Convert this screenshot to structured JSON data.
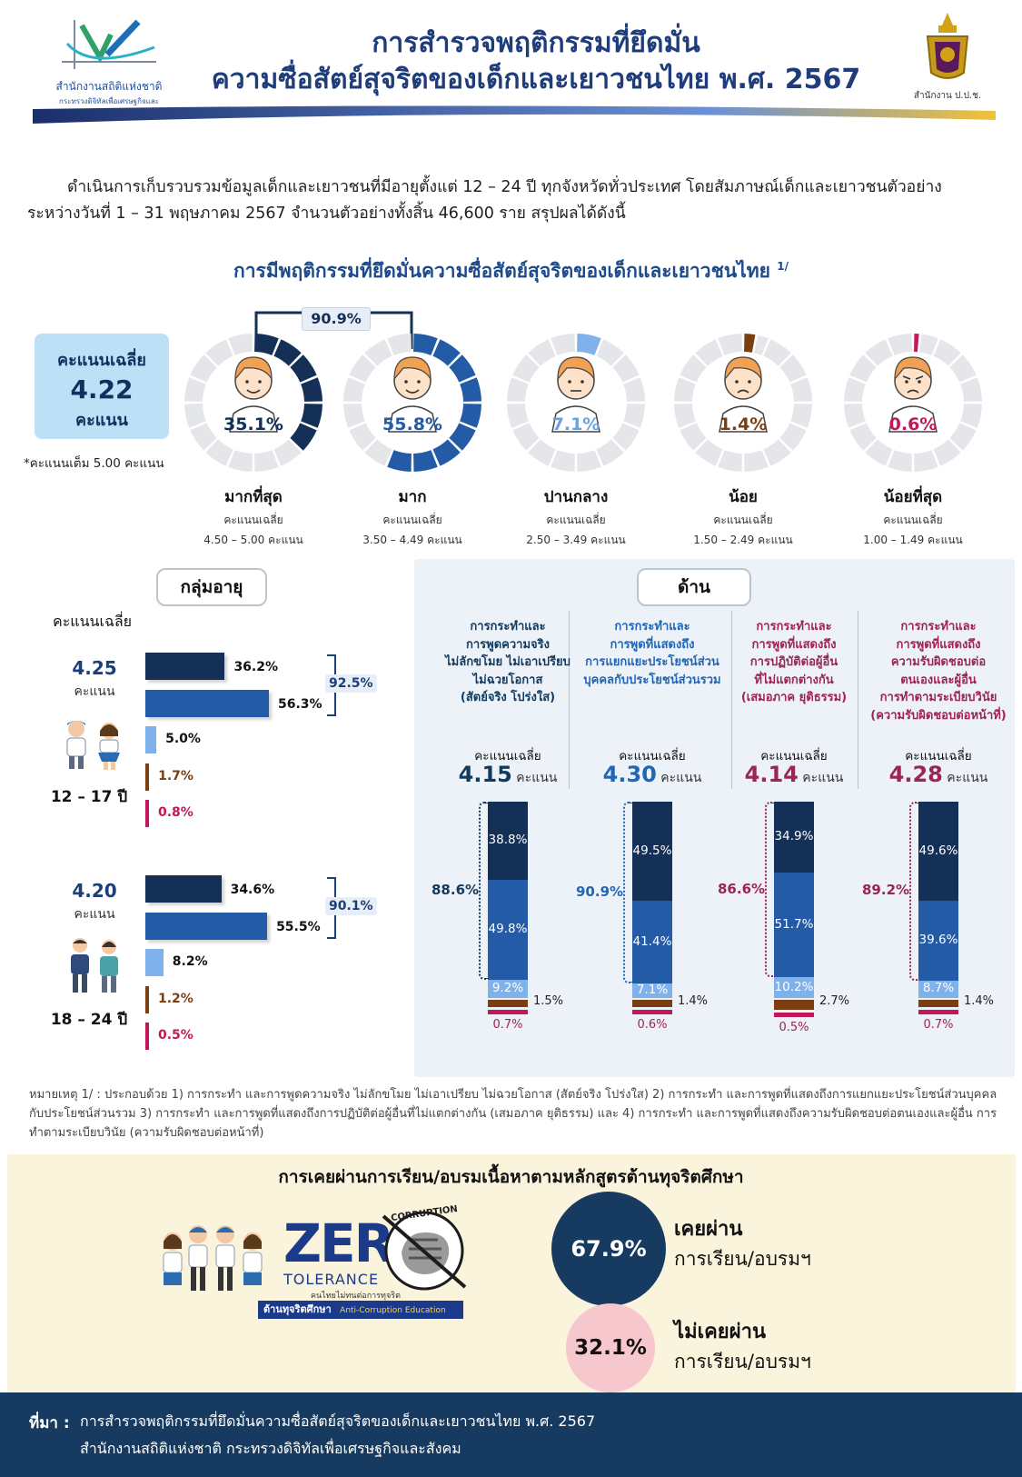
{
  "header": {
    "title_line1": "การสำรวจพฤติกรรมที่ยึดมั่น",
    "title_line2": "ความซื่อสัตย์สุจริตของเด็กและเยาวชนไทย พ.ศ. 2567",
    "left_logo_name": "สำนักงานสถิติแห่งชาติ",
    "left_logo_sub": "กระทรวงดิจิทัลเพื่อเศรษฐกิจและสังคม",
    "right_logo_name": "สำนักงาน ป.ป.ช."
  },
  "intro": "ดำเนินการเก็บรวบรวมข้อมูลเด็กและเยาวชนที่มีอายุตั้งแต่ 12 – 24 ปี ทุกจังหวัดทั่วประเทศ โดยสัมภาษณ์เด็กและเยาวชนตัวอย่าง ระหว่างวันที่ 1 – 31 พฤษภาคม 2567 จำนวนตัวอย่างทั้งสิ้น 46,600 ราย สรุปผลได้ดังนี้",
  "section1": {
    "title": "การมีพฤติกรรมที่ยึดมั่นความซื่อสัตย์สุจริตของเด็กและเยาวชนไทย",
    "title_sup": "1/",
    "avg_label": "คะแนนเฉลี่ย",
    "avg_value": "4.22",
    "avg_unit": "คะแนน",
    "avg_note": "*คะแนนเต็ม 5.00 คะแนน",
    "top_two_sum": "90.9%"
  },
  "chart_data": [
    {
      "type": "pie",
      "title": "",
      "categories": [
        "มากที่สุด",
        "มาก",
        "ปานกลาง",
        "น้อย",
        "น้อยที่สุด"
      ],
      "values": [
        35.1,
        55.8,
        7.1,
        1.4,
        0.6
      ],
      "value_labels": [
        "35.1%",
        "55.8%",
        "7.1%",
        "1.4%",
        "0.6%"
      ],
      "score_ranges": [
        "4.50 – 5.00 คะแนน",
        "3.50 – 4.49 คะแนน",
        "2.50 – 3.49 คะแนน",
        "1.50 – 2.49 คะแนน",
        "1.00 – 1.49 คะแนน"
      ],
      "range_label": "คะแนนเฉลี่ย",
      "colors": [
        "#143057",
        "#245ba6",
        "#7fb2ea",
        "#7a3e12",
        "#c2185b"
      ],
      "track_color": "#e4e6ea"
    },
    {
      "type": "bar",
      "title": "กลุ่มอายุ",
      "ylabel": "คะแนนเฉลี่ย",
      "orientation": "horizontal",
      "groups": [
        {
          "name": "12 – 17 ปี",
          "score": "4.25",
          "unit": "คะแนน",
          "values": [
            36.2,
            56.3,
            5.0,
            1.7,
            0.8
          ],
          "labels": [
            "36.2%",
            "56.3%",
            "5.0%",
            "1.7%",
            "0.8%"
          ],
          "top_two_sum": "92.5%"
        },
        {
          "name": "18 – 24 ปี",
          "score": "4.20",
          "unit": "คะแนน",
          "values": [
            34.6,
            55.5,
            8.2,
            1.2,
            0.5
          ],
          "labels": [
            "34.6%",
            "55.5%",
            "8.2%",
            "1.2%",
            "0.5%"
          ],
          "top_two_sum": "90.1%"
        }
      ],
      "xlim": [
        0,
        100
      ]
    },
    {
      "type": "bar",
      "title": "ด้าน",
      "stacked": true,
      "avg_label": "คะแนนเฉลี่ย",
      "unit": "คะแนน",
      "aspects": [
        {
          "name_lines": [
            "การกระทำและ",
            "การพูดความจริง",
            "ไม่ลักขโมย ไม่เอาเปรียบ",
            "ไม่ฉวยโอกาส",
            "(สัตย์จริง โปร่งใส)"
          ],
          "score": "4.15",
          "values": [
            38.8,
            49.8,
            9.2,
            1.5,
            0.7
          ],
          "labels": [
            "38.8%",
            "49.8%",
            "9.2%",
            "1.5%",
            "0.7%"
          ],
          "top_two_sum": "88.6%",
          "accent": "#123a5e"
        },
        {
          "name_lines": [
            "การกระทำและ",
            "การพูดที่แสดงถึง",
            "การแยกแยะประโยชน์ส่วน",
            "บุคคลกับประโยชน์ส่วนรวม"
          ],
          "score": "4.30",
          "values": [
            49.5,
            41.4,
            7.1,
            1.4,
            0.6
          ],
          "labels": [
            "49.5%",
            "41.4%",
            "7.1%",
            "1.4%",
            "0.6%"
          ],
          "top_two_sum": "90.9%",
          "accent": "#2166b5"
        },
        {
          "name_lines": [
            "การกระทำและ",
            "การพูดที่แสดงถึง",
            "การปฏิบัติต่อผู้อื่น",
            "ที่ไม่แตกต่างกัน",
            "(เสมอภาค ยุติธรรม)"
          ],
          "score": "4.14",
          "values": [
            34.9,
            51.7,
            10.2,
            2.7,
            0.5
          ],
          "labels": [
            "34.9%",
            "51.7%",
            "10.2%",
            "2.7%",
            "0.5%"
          ],
          "top_two_sum": "86.6%",
          "accent": "#9c2456"
        },
        {
          "name_lines": [
            "การกระทำและ",
            "การพูดที่แสดงถึง",
            "ความรับผิดชอบต่อ",
            "ตนเองและผู้อื่น",
            "การทำตามระเบียบวินัย",
            "(ความรับผิดชอบต่อหน้าที่)"
          ],
          "score": "4.28",
          "values": [
            49.6,
            39.6,
            8.7,
            1.4,
            0.7
          ],
          "labels": [
            "49.6%",
            "39.6%",
            "8.7%",
            "1.4%",
            "0.7%"
          ],
          "top_two_sum": "89.2%",
          "accent": "#9c2456"
        }
      ],
      "ylim": [
        0,
        100
      ]
    }
  ],
  "footnote": "หมายเหตุ 1/ : ประกอบด้วย 1) การกระทำ และการพูดความจริง ไม่ลักขโมย ไม่เอาเปรียบ ไม่ฉวยโอกาส (สัตย์จริง โปร่งใส) 2) การกระทำ และการพูดที่แสดงถึงการแยกแยะประโยชน์ส่วนบุคคลกับประโยชน์ส่วนรวม 3) การกระทำ และการพูดที่แสดงถึงการปฏิบัติต่อผู้อื่นที่ไม่แตกต่างกัน (เสมอภาค ยุติธรรม) และ 4) การกระทำ และการพูดที่แสดงถึงความรับผิดชอบต่อตนเองและผู้อื่น การทำตามระเบียบวินัย (ความรับผิดชอบต่อหน้าที่)",
  "training": {
    "title": "การเคยผ่านการเรียน/อบรมเนื้อหาตามหลักสูตรต้านทุจริตศึกษา",
    "yes_value": "67.9%",
    "yes_l1": "เคยผ่าน",
    "yes_l2": "การเรียน/อบรมฯ",
    "no_value": "32.1%",
    "no_l1": "ไม่เคยผ่าน",
    "no_l2": "การเรียน/อบรมฯ",
    "logo_zero": "ZER",
    "logo_corruption": "CORRUPTION",
    "logo_tolerance": "TOLERANCE",
    "logo_tagline": "คนไทยไม่ทนต่อการทุจริต",
    "logo_banner_th": "ต้านทุจริตศึกษา",
    "logo_banner_en": "Anti-Corruption Education"
  },
  "source": {
    "label": "ที่มา :",
    "line1": "การสำรวจพฤติกรรมที่ยึดมั่นความซื่อสัตย์สุจริตของเด็กและเยาวชนไทย พ.ศ. 2567",
    "line2": "สำนักงานสถิติแห่งชาติ กระทรวงดิจิทัลเพื่อเศรษฐกิจและสังคม"
  },
  "colors": {
    "very_high": "#143057",
    "high": "#245ba6",
    "medium": "#7fb2ea",
    "low": "#7a3e12",
    "very_low": "#c2185b"
  }
}
